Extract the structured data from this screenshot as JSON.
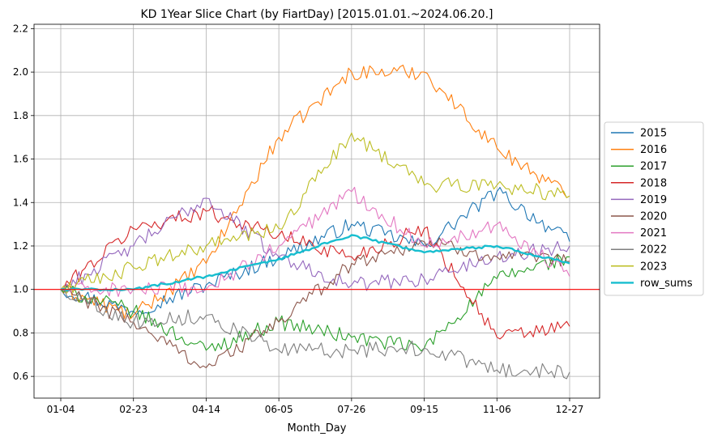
{
  "chart_data": {
    "type": "line",
    "title": "KD 1Year Slice Chart (by FiartDay) [2015.01.01.~2024.06.20.]",
    "xlabel": "Month_Day",
    "ylabel": "",
    "x_ticks": [
      "01-04",
      "02-23",
      "04-14",
      "06-05",
      "07-26",
      "09-15",
      "11-06",
      "12-27"
    ],
    "y_ticks": [
      "0.6",
      "0.8",
      "1.0",
      "1.2",
      "1.4",
      "1.6",
      "1.8",
      "2.0",
      "2.2"
    ],
    "x_range": [
      "01-04",
      "12-27"
    ],
    "ylim": [
      0.5,
      2.22
    ],
    "grid": true,
    "legend_position": "right",
    "reference_line": {
      "y": 1.0,
      "color": "#ff0000"
    },
    "x": [
      "01-04",
      "02-23",
      "04-14",
      "06-05",
      "07-26",
      "09-15",
      "11-06",
      "12-27"
    ],
    "series": [
      {
        "name": "2015",
        "color": "#1f77b4",
        "values": [
          1.0,
          0.9,
          1.02,
          1.15,
          1.3,
          1.2,
          1.45,
          1.22
        ]
      },
      {
        "name": "2016",
        "color": "#ff7f0e",
        "values": [
          1.0,
          0.88,
          1.12,
          1.7,
          2.0,
          2.0,
          1.65,
          1.43
        ]
      },
      {
        "name": "2017",
        "color": "#2ca02c",
        "values": [
          1.0,
          0.9,
          0.72,
          0.85,
          0.78,
          0.73,
          1.05,
          1.15
        ]
      },
      {
        "name": "2018",
        "color": "#d62728",
        "values": [
          1.0,
          1.28,
          1.36,
          1.25,
          1.15,
          1.28,
          0.78,
          0.83
        ]
      },
      {
        "name": "2019",
        "color": "#9467bd",
        "values": [
          1.0,
          1.2,
          1.42,
          1.15,
          1.02,
          1.05,
          1.15,
          1.2
        ]
      },
      {
        "name": "2020",
        "color": "#8c564b",
        "values": [
          1.0,
          0.85,
          0.64,
          0.85,
          1.12,
          1.22,
          1.15,
          1.13
        ]
      },
      {
        "name": "2021",
        "color": "#e377c2",
        "values": [
          1.0,
          1.0,
          1.0,
          1.2,
          1.45,
          1.2,
          1.3,
          1.06
        ]
      },
      {
        "name": "2022",
        "color": "#7f7f7f",
        "values": [
          1.0,
          0.85,
          0.88,
          0.72,
          0.72,
          0.73,
          0.63,
          0.62
        ]
      },
      {
        "name": "2023",
        "color": "#bcbd22",
        "values": [
          1.0,
          1.1,
          1.2,
          1.28,
          1.72,
          1.48,
          1.48,
          1.43
        ]
      },
      {
        "name": "row_sums",
        "color": "#17becf",
        "values": [
          1.0,
          1.0,
          1.06,
          1.14,
          1.25,
          1.17,
          1.2,
          1.12
        ]
      }
    ]
  }
}
